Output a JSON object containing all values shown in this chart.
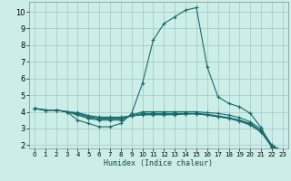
{
  "xlabel": "Humidex (Indice chaleur)",
  "bg_color": "#cceee8",
  "grid_color": "#aacccc",
  "line_color": "#1a6b6b",
  "xlim": [
    -0.5,
    23.5
  ],
  "ylim": [
    1.8,
    10.6
  ],
  "yticks": [
    2,
    3,
    4,
    5,
    6,
    7,
    8,
    9,
    10
  ],
  "xticks": [
    0,
    1,
    2,
    3,
    4,
    5,
    6,
    7,
    8,
    9,
    10,
    11,
    12,
    13,
    14,
    15,
    16,
    17,
    18,
    19,
    20,
    21,
    22,
    23
  ],
  "lines": [
    {
      "x": [
        0,
        1,
        2,
        3,
        4,
        5,
        6,
        7,
        8,
        9,
        10,
        11,
        12,
        13,
        14,
        15,
        16,
        17,
        18,
        19,
        20,
        21,
        22,
        23
      ],
      "y": [
        4.2,
        4.1,
        4.1,
        4.0,
        3.5,
        3.3,
        3.1,
        3.1,
        3.3,
        3.9,
        5.7,
        8.3,
        9.3,
        9.7,
        10.1,
        10.25,
        6.7,
        4.9,
        4.5,
        4.3,
        3.9,
        3.05,
        1.85,
        1.65
      ],
      "style": "solid"
    },
    {
      "x": [
        0,
        1,
        2,
        3,
        4,
        5,
        6,
        7,
        8,
        9,
        10,
        11,
        12,
        13,
        14,
        15,
        16,
        17,
        18,
        19,
        20,
        21,
        22,
        23
      ],
      "y": [
        4.2,
        4.1,
        4.1,
        4.0,
        3.8,
        3.6,
        3.5,
        3.5,
        3.5,
        3.8,
        4.0,
        4.0,
        4.0,
        4.0,
        4.0,
        4.0,
        3.95,
        3.9,
        3.8,
        3.65,
        3.4,
        2.95,
        2.0,
        1.65
      ],
      "style": "solid"
    },
    {
      "x": [
        0,
        1,
        2,
        3,
        4,
        5,
        6,
        7,
        8,
        9,
        10,
        11,
        12,
        13,
        14,
        15,
        16,
        17,
        18,
        19,
        20,
        21,
        22,
        23
      ],
      "y": [
        4.2,
        4.1,
        4.1,
        4.0,
        3.85,
        3.65,
        3.55,
        3.55,
        3.55,
        3.75,
        3.9,
        3.9,
        3.9,
        3.9,
        3.9,
        3.9,
        3.85,
        3.75,
        3.65,
        3.5,
        3.3,
        2.85,
        1.95,
        1.65
      ],
      "style": "solid"
    },
    {
      "x": [
        0,
        1,
        2,
        3,
        4,
        5,
        6,
        7,
        8,
        9,
        10,
        11,
        12,
        13,
        14,
        15,
        16,
        17,
        18,
        19,
        20,
        21,
        22,
        23
      ],
      "y": [
        4.2,
        4.1,
        4.1,
        4.0,
        3.9,
        3.72,
        3.62,
        3.62,
        3.62,
        3.75,
        3.85,
        3.85,
        3.85,
        3.85,
        3.88,
        3.88,
        3.82,
        3.72,
        3.62,
        3.47,
        3.25,
        2.82,
        1.92,
        1.65
      ],
      "style": "solid"
    },
    {
      "x": [
        0,
        1,
        2,
        3,
        4,
        5,
        6,
        7,
        8,
        9,
        10,
        11,
        12,
        13,
        14,
        15,
        16,
        17,
        18,
        19,
        20,
        21,
        22,
        23
      ],
      "y": [
        4.2,
        4.1,
        4.1,
        4.0,
        3.95,
        3.78,
        3.68,
        3.68,
        3.68,
        3.75,
        3.82,
        3.82,
        3.82,
        3.82,
        3.87,
        3.87,
        3.8,
        3.7,
        3.6,
        3.43,
        3.2,
        2.78,
        1.88,
        1.65
      ],
      "style": "solid"
    }
  ]
}
